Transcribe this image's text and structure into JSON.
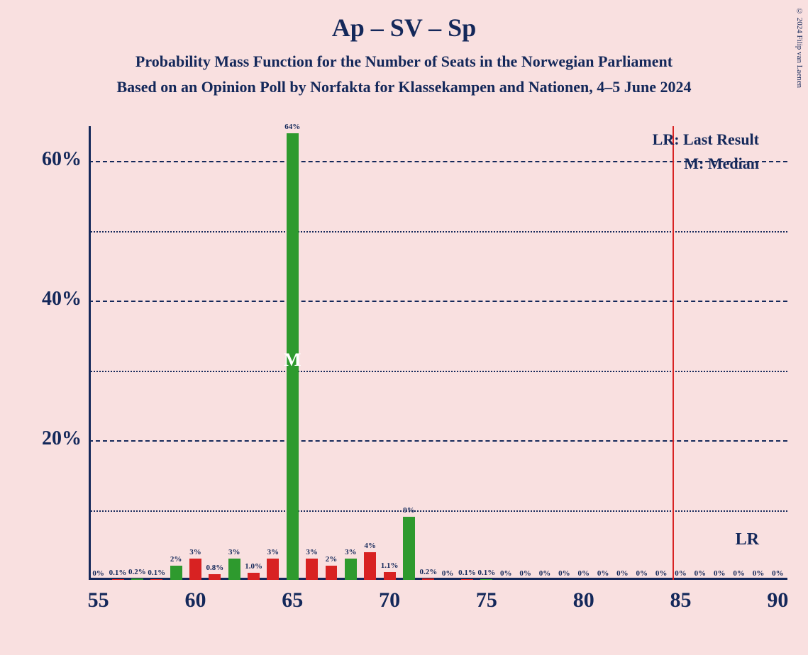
{
  "title": "Ap – SV – Sp",
  "subtitle1": "Probability Mass Function for the Number of Seats in the Norwegian Parliament",
  "subtitle2": "Based on an Opinion Poll by Norfakta for Klassekampen and Nationen, 4–5 June 2024",
  "copyright": "© 2024 Filip van Laenen",
  "legend": {
    "lr": "LR: Last Result",
    "m": "M: Median"
  },
  "lr_tick": "LR",
  "median_mark": "M",
  "chart": {
    "type": "bar",
    "background_color": "#f9e0e0",
    "axis_color": "#14285a",
    "grid_major_color": "#14285a",
    "grid_minor_color": "#14285a",
    "text_color": "#14285a",
    "bar_colors": {
      "green": "#2e9a2e",
      "red": "#d82222"
    },
    "lr_line_color": "#d82222",
    "x_min": 55,
    "x_max": 90,
    "x_tick_step": 5,
    "y_min": 0,
    "y_max": 65,
    "y_ticks": [
      20,
      40,
      60
    ],
    "y_minor_ticks": [
      10,
      30,
      50
    ],
    "bar_width_ratio": 0.62,
    "lr_x": 85,
    "median_x": 65,
    "bars": [
      {
        "x": 55,
        "value": 0,
        "label": "0%",
        "color": "green"
      },
      {
        "x": 56,
        "value": 0.1,
        "label": "0.1%",
        "color": "red"
      },
      {
        "x": 57,
        "value": 0.2,
        "label": "0.2%",
        "color": "green"
      },
      {
        "x": 58,
        "value": 0.1,
        "label": "0.1%",
        "color": "red"
      },
      {
        "x": 59,
        "value": 2,
        "label": "2%",
        "color": "green"
      },
      {
        "x": 60,
        "value": 3,
        "label": "3%",
        "color": "red"
      },
      {
        "x": 61,
        "value": 0.8,
        "label": "0.8%",
        "color": "red"
      },
      {
        "x": 62,
        "value": 3,
        "label": "3%",
        "color": "green"
      },
      {
        "x": 63,
        "value": 1.0,
        "label": "1.0%",
        "color": "red"
      },
      {
        "x": 64,
        "value": 3,
        "label": "3%",
        "color": "red"
      },
      {
        "x": 65,
        "value": 64,
        "label": "64%",
        "color": "green"
      },
      {
        "x": 66,
        "value": 3,
        "label": "3%",
        "color": "red"
      },
      {
        "x": 67,
        "value": 2,
        "label": "2%",
        "color": "red"
      },
      {
        "x": 68,
        "value": 3,
        "label": "3%",
        "color": "green"
      },
      {
        "x": 69,
        "value": 4,
        "label": "4%",
        "color": "red"
      },
      {
        "x": 70,
        "value": 1.1,
        "label": "1.1%",
        "color": "red"
      },
      {
        "x": 71,
        "value": 9,
        "label": "9%",
        "color": "green"
      },
      {
        "x": 72,
        "value": 0.2,
        "label": "0.2%",
        "color": "red"
      },
      {
        "x": 73,
        "value": 0,
        "label": "0%",
        "color": "green"
      },
      {
        "x": 74,
        "value": 0.1,
        "label": "0.1%",
        "color": "red"
      },
      {
        "x": 75,
        "value": 0.1,
        "label": "0.1%",
        "color": "green"
      },
      {
        "x": 76,
        "value": 0,
        "label": "0%",
        "color": "red"
      },
      {
        "x": 77,
        "value": 0,
        "label": "0%",
        "color": "green"
      },
      {
        "x": 78,
        "value": 0,
        "label": "0%",
        "color": "red"
      },
      {
        "x": 79,
        "value": 0,
        "label": "0%",
        "color": "green"
      },
      {
        "x": 80,
        "value": 0,
        "label": "0%",
        "color": "red"
      },
      {
        "x": 81,
        "value": 0,
        "label": "0%",
        "color": "green"
      },
      {
        "x": 82,
        "value": 0,
        "label": "0%",
        "color": "red"
      },
      {
        "x": 83,
        "value": 0,
        "label": "0%",
        "color": "green"
      },
      {
        "x": 84,
        "value": 0,
        "label": "0%",
        "color": "red"
      },
      {
        "x": 85,
        "value": 0,
        "label": "0%",
        "color": "green"
      },
      {
        "x": 86,
        "value": 0,
        "label": "0%",
        "color": "red"
      },
      {
        "x": 87,
        "value": 0,
        "label": "0%",
        "color": "green"
      },
      {
        "x": 88,
        "value": 0,
        "label": "0%",
        "color": "red"
      },
      {
        "x": 89,
        "value": 0,
        "label": "0%",
        "color": "green"
      },
      {
        "x": 90,
        "value": 0,
        "label": "0%",
        "color": "red"
      }
    ]
  }
}
